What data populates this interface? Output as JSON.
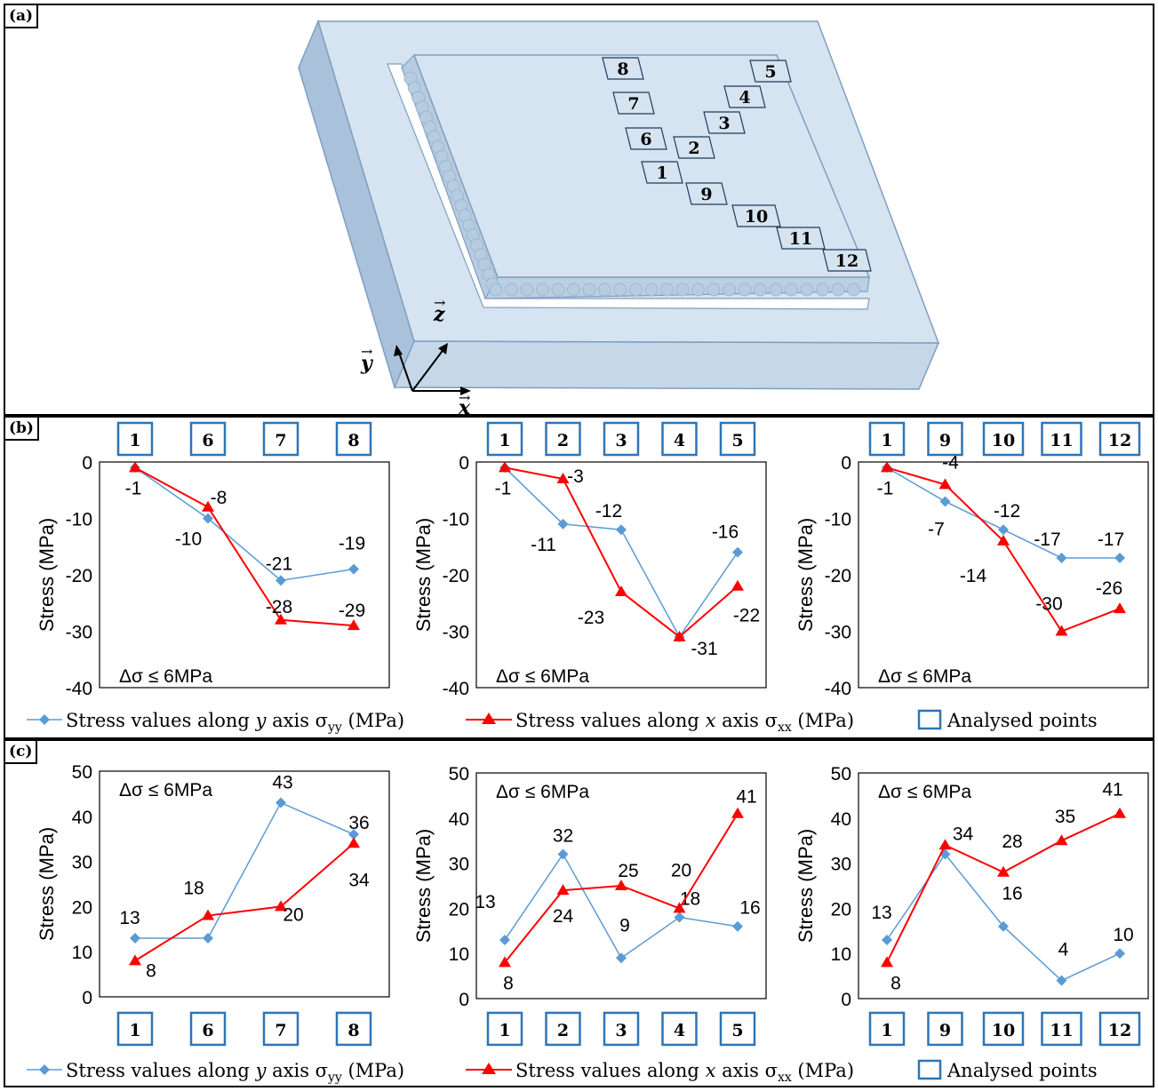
{
  "panels": {
    "a": "(a)",
    "b": "(b)",
    "c": "(c)"
  },
  "note": "Δσ ≤ 6MPa",
  "ylabel": "Stress (MPa)",
  "colors": {
    "yy": "#5b9bd5",
    "xx": "#ff0000",
    "box": "#2e75b6",
    "plate": "#d6e3f0",
    "plateEdge": "#7f9fbf"
  },
  "legend": {
    "yy_prefix": "Stress values along",
    "yy_axis": "y",
    "yy_suffix": "axis σ",
    "yy_sub": "yy",
    "yy_unit": "(MPa)",
    "xx_prefix": "Stress values along",
    "xx_axis": "x",
    "xx_suffix": "axis σ",
    "xx_sub": "xx",
    "xx_unit": "(MPa)",
    "points": "Analysed points"
  },
  "schematic": {
    "axes": {
      "x": "x",
      "y": "y",
      "z": "z"
    },
    "point_labels": [
      "1",
      "2",
      "3",
      "4",
      "5",
      "6",
      "7",
      "8",
      "9",
      "10",
      "11",
      "12"
    ]
  },
  "chart_data": [
    {
      "panel": "b",
      "type": "line",
      "categories": [
        "1",
        "6",
        "7",
        "8"
      ],
      "ylim": [
        -40,
        0
      ],
      "yticks": [
        0,
        -10,
        -20,
        -30,
        -40
      ],
      "series": [
        {
          "name": "Stress values along y axis σyy (MPa)",
          "values": [
            -1,
            -10,
            -21,
            -19
          ]
        },
        {
          "name": "Stress values along x axis σxx (MPa)",
          "values": [
            -1,
            -8,
            -28,
            -29
          ]
        }
      ]
    },
    {
      "panel": "b",
      "type": "line",
      "categories": [
        "1",
        "2",
        "3",
        "4",
        "5"
      ],
      "ylim": [
        -40,
        0
      ],
      "yticks": [
        0,
        -10,
        -20,
        -30,
        -40
      ],
      "series": [
        {
          "name": "Stress values along y axis σyy (MPa)",
          "values": [
            -1,
            -11,
            -12,
            -31,
            -16
          ]
        },
        {
          "name": "Stress values along x axis σxx (MPa)",
          "values": [
            -1,
            -3,
            -23,
            -31,
            -22
          ]
        }
      ]
    },
    {
      "panel": "b",
      "type": "line",
      "categories": [
        "1",
        "9",
        "10",
        "11",
        "12"
      ],
      "ylim": [
        -40,
        0
      ],
      "yticks": [
        0,
        -10,
        -20,
        -30,
        -40
      ],
      "series": [
        {
          "name": "Stress values along y axis σyy (MPa)",
          "values": [
            -1,
            -7,
            -12,
            -17,
            -17
          ]
        },
        {
          "name": "Stress values along x axis σxx (MPa)",
          "values": [
            -1,
            -4,
            -14,
            -30,
            -26
          ]
        }
      ]
    },
    {
      "panel": "c",
      "type": "line",
      "categories": [
        "1",
        "6",
        "7",
        "8"
      ],
      "ylim": [
        0,
        50
      ],
      "yticks": [
        0,
        10,
        20,
        30,
        40,
        50
      ],
      "series": [
        {
          "name": "Stress values along y axis σyy (MPa)",
          "values": [
            13,
            13,
            43,
            36
          ]
        },
        {
          "name": "Stress values along x axis σxx (MPa)",
          "values": [
            8,
            18,
            20,
            34
          ]
        }
      ]
    },
    {
      "panel": "c",
      "type": "line",
      "categories": [
        "1",
        "2",
        "3",
        "4",
        "5"
      ],
      "ylim": [
        0,
        50
      ],
      "yticks": [
        0,
        10,
        20,
        30,
        40,
        50
      ],
      "series": [
        {
          "name": "Stress values along y axis σyy (MPa)",
          "values": [
            13,
            32,
            9,
            18,
            16
          ]
        },
        {
          "name": "Stress values along x axis σxx (MPa)",
          "values": [
            8,
            24,
            25,
            20,
            41
          ]
        }
      ]
    },
    {
      "panel": "c",
      "type": "line",
      "categories": [
        "1",
        "9",
        "10",
        "11",
        "12"
      ],
      "ylim": [
        0,
        50
      ],
      "yticks": [
        0,
        10,
        20,
        30,
        40,
        50
      ],
      "series": [
        {
          "name": "Stress values along y axis σyy (MPa)",
          "values": [
            13,
            32,
            16,
            4,
            10
          ]
        },
        {
          "name": "Stress values along x axis σxx (MPa)",
          "values": [
            8,
            34,
            28,
            35,
            41
          ]
        }
      ]
    }
  ]
}
